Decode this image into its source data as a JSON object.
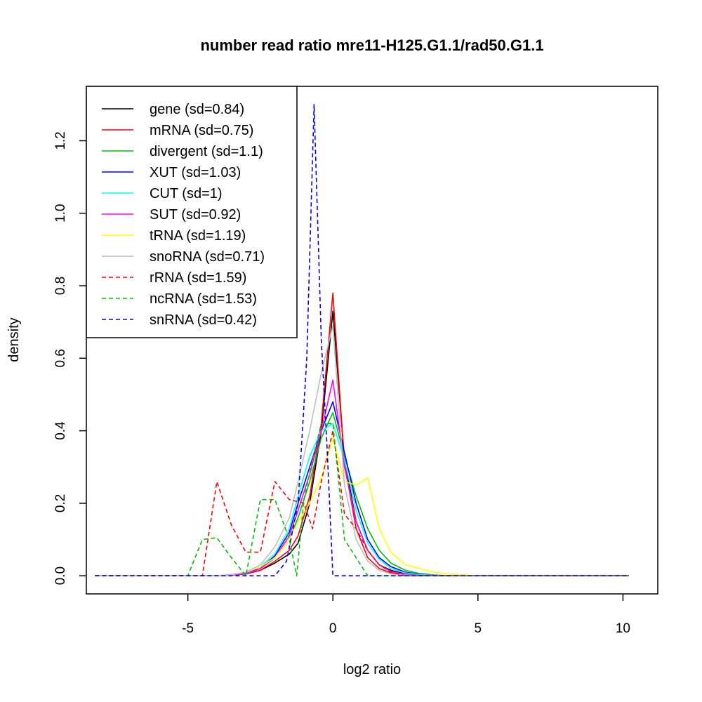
{
  "chart_data": {
    "type": "line",
    "title": "number read ratio mre11-H125.G1.1/rad50.G1.1",
    "xlabel": "log2 ratio",
    "ylabel": "density",
    "xlim": [
      -8.5,
      11.2
    ],
    "ylim": [
      -0.05,
      1.35
    ],
    "x_ticks": [
      -5,
      0,
      5,
      10
    ],
    "x_tick_labels": [
      "-5",
      "0",
      "5",
      "10"
    ],
    "y_ticks": [
      0.0,
      0.2,
      0.4,
      0.6,
      0.8,
      1.0,
      1.2
    ],
    "y_tick_labels": [
      "0.0",
      "0.2",
      "0.4",
      "0.6",
      "0.8",
      "1.0",
      "1.2"
    ],
    "grid": false,
    "legend_position": "top-left",
    "series": [
      {
        "name": "gene (sd=0.84)",
        "color": "#000000",
        "dash": "solid",
        "x": [
          -8.2,
          -6,
          -5,
          -4,
          -3.5,
          -3,
          -2.5,
          -2,
          -1.5,
          -1.2,
          -0.8,
          -0.4,
          0,
          0.4,
          0.8,
          1.2,
          1.6,
          2,
          2.5,
          3,
          3.5,
          4,
          5,
          6,
          10.2
        ],
        "y": [
          0,
          0,
          0,
          0,
          0.002,
          0.005,
          0.015,
          0.035,
          0.06,
          0.09,
          0.2,
          0.4,
          0.73,
          0.32,
          0.15,
          0.07,
          0.03,
          0.015,
          0.005,
          0.002,
          0,
          0,
          0,
          0,
          0
        ]
      },
      {
        "name": "mRNA (sd=0.75)",
        "color": "#ff0000",
        "dash": "solid",
        "x": [
          -8.2,
          -6,
          -5,
          -4,
          -3.5,
          -3,
          -2.5,
          -2,
          -1.5,
          -1.2,
          -0.8,
          -0.4,
          0,
          0.4,
          0.8,
          1.2,
          1.6,
          2,
          2.5,
          3,
          3.5,
          4,
          5,
          6,
          10.2
        ],
        "y": [
          0,
          0,
          0,
          0,
          0.002,
          0.005,
          0.015,
          0.04,
          0.07,
          0.11,
          0.22,
          0.42,
          0.78,
          0.31,
          0.13,
          0.05,
          0.02,
          0.008,
          0.003,
          0.001,
          0,
          0,
          0,
          0,
          0
        ]
      },
      {
        "name": "divergent (sd=1.1)",
        "color": "#00c000",
        "dash": "solid",
        "x": [
          -8.2,
          -6,
          -5,
          -4,
          -3.5,
          -3,
          -2.5,
          -2,
          -1.5,
          -1.2,
          -0.8,
          -0.4,
          0,
          0.4,
          0.8,
          1.2,
          1.6,
          2,
          2.5,
          3,
          3.5,
          4,
          5,
          6,
          10.2
        ],
        "y": [
          0,
          0,
          0,
          0,
          0.003,
          0.008,
          0.02,
          0.05,
          0.1,
          0.16,
          0.26,
          0.38,
          0.45,
          0.33,
          0.22,
          0.13,
          0.07,
          0.035,
          0.015,
          0.006,
          0.002,
          0,
          0,
          0,
          0
        ]
      },
      {
        "name": "XUT (sd=1.03)",
        "color": "#0000ff",
        "dash": "solid",
        "x": [
          -8.2,
          -6,
          -5,
          -4,
          -3.5,
          -3,
          -2.5,
          -2,
          -1.5,
          -1.2,
          -0.8,
          -0.4,
          0,
          0.4,
          0.8,
          1.2,
          1.6,
          2,
          2.5,
          3,
          3.5,
          4,
          5,
          6,
          10.2
        ],
        "y": [
          0,
          0,
          0,
          0,
          0.003,
          0.008,
          0.02,
          0.055,
          0.12,
          0.2,
          0.3,
          0.4,
          0.48,
          0.34,
          0.2,
          0.1,
          0.05,
          0.025,
          0.01,
          0.004,
          0.001,
          0,
          0,
          0,
          0
        ]
      },
      {
        "name": "CUT (sd=1)",
        "color": "#00ffff",
        "dash": "solid",
        "x": [
          -8.2,
          -6,
          -5,
          -4,
          -3.5,
          -3,
          -2.5,
          -2,
          -1.5,
          -1.2,
          -0.8,
          -0.4,
          0,
          0.4,
          0.8,
          1.2,
          1.6,
          2,
          2.5,
          3,
          3.5,
          4,
          5,
          6,
          10.2
        ],
        "y": [
          0,
          0,
          0,
          0,
          0.003,
          0.008,
          0.025,
          0.06,
          0.13,
          0.22,
          0.33,
          0.4,
          0.42,
          0.32,
          0.18,
          0.09,
          0.045,
          0.02,
          0.008,
          0.003,
          0.001,
          0,
          0,
          0,
          0
        ]
      },
      {
        "name": "SUT (sd=0.92)",
        "color": "#ff00ff",
        "dash": "solid",
        "x": [
          -8.2,
          -6,
          -5,
          -4,
          -3.5,
          -3,
          -2.5,
          -2,
          -1.5,
          -1.2,
          -0.8,
          -0.4,
          0,
          0.4,
          0.8,
          1.2,
          1.6,
          2,
          2.5,
          3,
          3.5,
          4,
          5,
          6,
          10.2
        ],
        "y": [
          0,
          0,
          0,
          0,
          0.002,
          0.006,
          0.02,
          0.05,
          0.11,
          0.18,
          0.28,
          0.4,
          0.54,
          0.3,
          0.15,
          0.07,
          0.03,
          0.012,
          0.004,
          0.001,
          0,
          0,
          0,
          0,
          0
        ]
      },
      {
        "name": "tRNA (sd=1.19)",
        "color": "#ffff00",
        "dash": "solid",
        "x": [
          -8.2,
          -6,
          -5,
          -4,
          -3.5,
          -3,
          -2.5,
          -2,
          -1.5,
          -1.2,
          -0.8,
          -0.4,
          0,
          0.4,
          0.8,
          1.2,
          1.6,
          2,
          2.5,
          3,
          3.5,
          4,
          5,
          6,
          10.2
        ],
        "y": [
          0,
          0,
          0,
          0,
          0.003,
          0.01,
          0.025,
          0.05,
          0.1,
          0.15,
          0.2,
          0.27,
          0.38,
          0.26,
          0.25,
          0.27,
          0.13,
          0.065,
          0.03,
          0.02,
          0.01,
          0.005,
          0,
          0,
          0
        ]
      },
      {
        "name": "snoRNA (sd=0.71)",
        "color": "#bebebe",
        "dash": "solid",
        "x": [
          -8.2,
          -6,
          -5,
          -4,
          -3.5,
          -3,
          -2.5,
          -2,
          -1.5,
          -1.2,
          -0.8,
          -0.4,
          0,
          0.4,
          0.8,
          1.2,
          1.6,
          2,
          2.5,
          3,
          3.5,
          4,
          5,
          6,
          10.2
        ],
        "y": [
          0,
          0,
          0,
          0,
          0.003,
          0.01,
          0.03,
          0.08,
          0.16,
          0.26,
          0.4,
          0.56,
          0.69,
          0.25,
          0.1,
          0.04,
          0.015,
          0.005,
          0.002,
          0,
          0,
          0,
          0,
          0,
          0
        ]
      },
      {
        "name": "rRNA (sd=1.59)",
        "color": "#ff0000",
        "dash": "dashed",
        "x": [
          -8.2,
          -6,
          -5,
          -4.5,
          -4,
          -3.5,
          -3,
          -2.5,
          -2,
          -1.5,
          -1,
          -0.7,
          -0.4,
          0,
          0.4,
          0.8,
          1.2,
          1.6,
          2,
          2.5,
          3,
          10.2
        ],
        "y": [
          0,
          0,
          0,
          0,
          0.26,
          0.14,
          0.065,
          0.065,
          0.26,
          0.21,
          0.2,
          0.13,
          0.26,
          0.4,
          0.17,
          0.13,
          0.07,
          0.03,
          0.01,
          0,
          0,
          0
        ]
      },
      {
        "name": "ncRNA (sd=1.53)",
        "color": "#00c000",
        "dash": "dashed",
        "x": [
          -8.2,
          -6,
          -5,
          -4.5,
          -4,
          -3.5,
          -3,
          -2.5,
          -2,
          -1.5,
          -1.25,
          -1,
          -0.7,
          -0.4,
          0,
          0.4,
          0.8,
          1.2,
          2,
          10.2
        ],
        "y": [
          0,
          0,
          0,
          0.1,
          0.105,
          0.05,
          0,
          0.21,
          0.21,
          0.1,
          0,
          0.21,
          0.32,
          0.42,
          0.42,
          0.1,
          0.05,
          0,
          0,
          0
        ]
      },
      {
        "name": "snRNA (sd=0.42)",
        "color": "#0000ff",
        "dash": "dashed",
        "x": [
          -8.2,
          -6,
          -3,
          -2,
          -1.6,
          -1.2,
          -0.9,
          -0.65,
          -0.4,
          -0.2,
          0,
          10.2
        ],
        "y": [
          0,
          0,
          0,
          0,
          0.04,
          0.2,
          0.6,
          1.3,
          0.65,
          0.35,
          0,
          0
        ]
      }
    ]
  }
}
